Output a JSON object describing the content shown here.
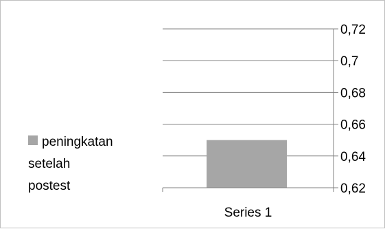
{
  "chart_data": {
    "type": "bar",
    "categories": [
      "Series 1"
    ],
    "series": [
      {
        "name": "peningkatan setelah postest",
        "values": [
          0.65
        ],
        "color": "#a6a6a6"
      }
    ],
    "ylim": [
      0.62,
      0.72
    ],
    "yticks": [
      "0,72",
      "0,7",
      "0,68",
      "0,66",
      "0,64",
      "0,62"
    ],
    "ytick_values": [
      0.72,
      0.7,
      0.68,
      0.66,
      0.64,
      0.62
    ],
    "y_axis_side": "right",
    "grid": true,
    "legend_position": "left",
    "legend_lines": [
      "peningkatan",
      "setelah",
      "postest"
    ]
  }
}
